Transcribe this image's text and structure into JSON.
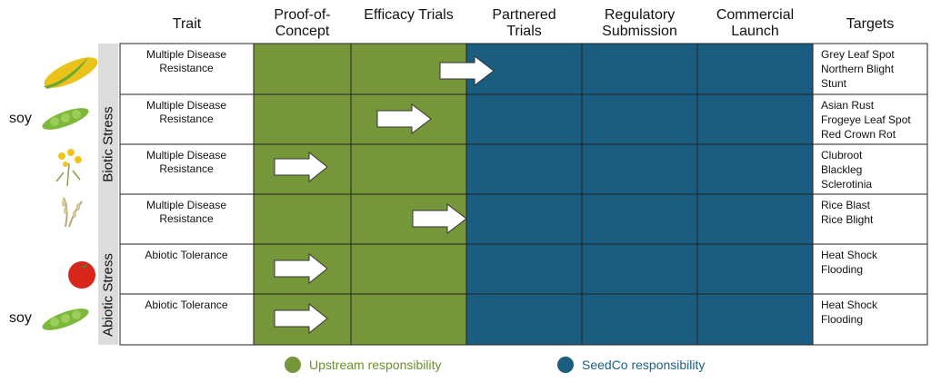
{
  "header": {
    "columns": [
      "Trait",
      "Proof-of-Concept",
      "Efficacy Trials",
      "Partnered Trials",
      "Regulatory Submission",
      "Commercial Launch",
      "Targets"
    ]
  },
  "groups": [
    "Biotic Stress",
    "Abiotic Stress"
  ],
  "rows": [
    {
      "trait": "Multiple Disease Resistance",
      "targets": [
        "Grey Leaf Spot",
        "Northern Blight",
        "Stunt"
      ]
    },
    {
      "crop": "soy",
      "trait": "Multiple Disease Resistance",
      "targets": [
        "Asian Rust",
        "Frogeye Leaf Spot",
        "Red Crown Rot"
      ]
    },
    {
      "trait": "Multiple Disease Resistance",
      "targets": [
        "Clubroot",
        "Blackleg",
        "Sclerotinia"
      ]
    },
    {
      "trait": "Multiple Disease Resistance",
      "targets": [
        "Rice Blast",
        "Rice Blight"
      ]
    },
    {
      "trait": "Abiotic Tolerance",
      "targets": [
        "Heat Shock",
        "Flooding"
      ]
    },
    {
      "crop": "soy",
      "trait": "Abiotic Tolerance",
      "targets": [
        "Heat Shock",
        "Flooding"
      ]
    }
  ],
  "legend": [
    "Upstream responsibility",
    "SeedCo responsibility"
  ]
}
